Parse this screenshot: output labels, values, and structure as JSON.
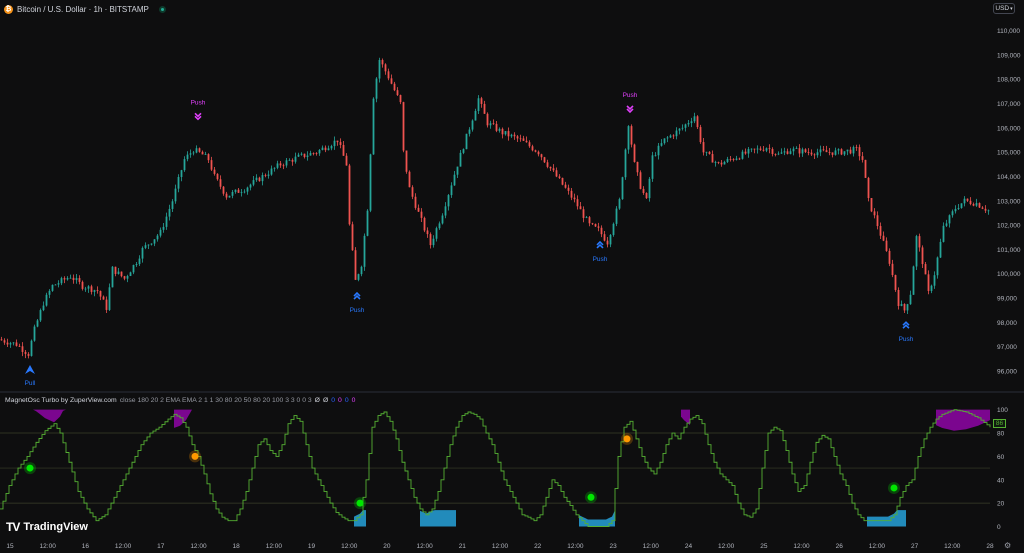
{
  "header": {
    "symbol_title": "Bitcoin / U.S. Dollar · 1h · BITSTAMP",
    "currency": "USD"
  },
  "indicator": {
    "name": "MagnetOsc Turbo by ZuperView.com",
    "params": "close 180 20 2 EMA EMA 2 1 1 30 80 20 50 80 20 100 3 3 0 0 3",
    "values": [
      "Ø",
      "Ø",
      "0",
      "0",
      "0",
      "0"
    ],
    "value_colors": [
      "#d1d4dc",
      "#d1d4dc",
      "#2962ff",
      "#e040fb",
      "#2962ff",
      "#e040fb"
    ],
    "current_value": "86"
  },
  "brand": {
    "name": "TradingView"
  },
  "colors": {
    "up": "#26a69a",
    "down": "#ef5350",
    "bull_signal": "#2979ff",
    "bear_signal": "#e040fb",
    "osc_line": "#55b033",
    "bull_zone": "#29b6f6",
    "bear_zone": "#d500f9",
    "green_dot": "#00e600",
    "orange_dot": "#ff9800"
  },
  "chart_data": [
    {
      "type": "candlestick",
      "title": "Bitcoin / U.S. Dollar · 1h · BITSTAMP",
      "y_ticks": [
        96000,
        97000,
        98000,
        99000,
        100000,
        101000,
        102000,
        103000,
        104000,
        105000,
        106000,
        107000,
        108000,
        109000,
        110000
      ],
      "ylim": [
        95300,
        110600
      ],
      "x_ticks": [
        "15",
        "12:00",
        "16",
        "12:00",
        "17",
        "12:00",
        "18",
        "12:00",
        "19",
        "12:00",
        "20",
        "12:00",
        "21",
        "12:00",
        "22",
        "12:00",
        "23",
        "12:00",
        "24",
        "12:00",
        "25",
        "12:00",
        "26",
        "12:00",
        "27",
        "12:00",
        "28"
      ],
      "xlim": [
        0,
        330
      ],
      "path_knots": [
        [
          0,
          97300
        ],
        [
          6,
          97100
        ],
        [
          10,
          96700
        ],
        [
          12,
          97700
        ],
        [
          15,
          98800
        ],
        [
          18,
          99500
        ],
        [
          24,
          99900
        ],
        [
          28,
          99500
        ],
        [
          33,
          99300
        ],
        [
          36,
          98600
        ],
        [
          38,
          100200
        ],
        [
          42,
          99800
        ],
        [
          46,
          100500
        ],
        [
          48,
          101000
        ],
        [
          54,
          101700
        ],
        [
          58,
          103000
        ],
        [
          62,
          104700
        ],
        [
          65,
          105100
        ],
        [
          68,
          104900
        ],
        [
          70,
          104700
        ],
        [
          72,
          104000
        ],
        [
          76,
          103200
        ],
        [
          82,
          103500
        ],
        [
          88,
          104000
        ],
        [
          94,
          104500
        ],
        [
          100,
          104800
        ],
        [
          106,
          105000
        ],
        [
          113,
          105500
        ],
        [
          116,
          104500
        ],
        [
          117,
          102000
        ],
        [
          119,
          99700
        ],
        [
          121,
          100400
        ],
        [
          123,
          102700
        ],
        [
          125,
          107300
        ],
        [
          127,
          108800
        ],
        [
          130,
          108100
        ],
        [
          134,
          107000
        ],
        [
          135,
          105000
        ],
        [
          137,
          103500
        ],
        [
          140,
          102500
        ],
        [
          144,
          101200
        ],
        [
          148,
          102500
        ],
        [
          153,
          104500
        ],
        [
          157,
          106000
        ],
        [
          160,
          107200
        ],
        [
          163,
          106200
        ],
        [
          168,
          105800
        ],
        [
          174,
          105500
        ],
        [
          180,
          105000
        ],
        [
          186,
          104000
        ],
        [
          192,
          103000
        ],
        [
          197,
          102000
        ],
        [
          200,
          101800
        ],
        [
          203,
          101300
        ],
        [
          207,
          103000
        ],
        [
          210,
          106200
        ],
        [
          212,
          104500
        ],
        [
          214,
          103600
        ],
        [
          216,
          103000
        ],
        [
          218,
          104800
        ],
        [
          222,
          105500
        ],
        [
          228,
          106000
        ],
        [
          232,
          106500
        ],
        [
          235,
          105000
        ],
        [
          240,
          104500
        ],
        [
          244,
          104700
        ],
        [
          250,
          105000
        ],
        [
          256,
          105200
        ],
        [
          260,
          104900
        ],
        [
          264,
          105100
        ],
        [
          270,
          105000
        ],
        [
          280,
          105000
        ],
        [
          286,
          105100
        ],
        [
          288,
          104700
        ],
        [
          290,
          103000
        ],
        [
          293,
          102000
        ],
        [
          297,
          100500
        ],
        [
          300,
          98800
        ],
        [
          302,
          98500
        ],
        [
          304,
          99200
        ],
        [
          306,
          101500
        ],
        [
          308,
          100500
        ],
        [
          310,
          99200
        ],
        [
          312,
          100000
        ],
        [
          315,
          101900
        ],
        [
          319,
          102700
        ],
        [
          322,
          103000
        ],
        [
          326,
          102900
        ],
        [
          330,
          102600
        ]
      ],
      "signals": [
        {
          "label": "Pull",
          "type": "bull",
          "x": 10,
          "y": 96700
        },
        {
          "label": "Push",
          "type": "bear",
          "x": 66,
          "y": 105900
        },
        {
          "label": "Push",
          "type": "bull",
          "x": 119,
          "y": 99700
        },
        {
          "label": "Push",
          "type": "bull",
          "x": 200,
          "y": 101800
        },
        {
          "label": "Push",
          "type": "bear",
          "x": 210,
          "y": 106200
        },
        {
          "label": "Push",
          "type": "bull",
          "x": 302,
          "y": 98500
        }
      ]
    },
    {
      "type": "line",
      "title": "MagnetOsc Turbo by ZuperView.com",
      "y_ticks": [
        0,
        20,
        40,
        60,
        80,
        100
      ],
      "ylim": [
        -3,
        104
      ],
      "levels": [
        20,
        50,
        80
      ],
      "osc_knots": [
        [
          0,
          15
        ],
        [
          3,
          35
        ],
        [
          6,
          50
        ],
        [
          9,
          60
        ],
        [
          12,
          72
        ],
        [
          15,
          82
        ],
        [
          18,
          88
        ],
        [
          20,
          80
        ],
        [
          23,
          55
        ],
        [
          26,
          30
        ],
        [
          29,
          15
        ],
        [
          32,
          5
        ],
        [
          35,
          10
        ],
        [
          38,
          25
        ],
        [
          41,
          40
        ],
        [
          44,
          55
        ],
        [
          47,
          70
        ],
        [
          50,
          80
        ],
        [
          53,
          85
        ],
        [
          56,
          92
        ],
        [
          58,
          96
        ],
        [
          60,
          93
        ],
        [
          62,
          85
        ],
        [
          64,
          70
        ],
        [
          66,
          60
        ],
        [
          68,
          45
        ],
        [
          70,
          28
        ],
        [
          72,
          15
        ],
        [
          74,
          8
        ],
        [
          76,
          5
        ],
        [
          78,
          5
        ],
        [
          80,
          15
        ],
        [
          82,
          30
        ],
        [
          84,
          50
        ],
        [
          86,
          70
        ],
        [
          88,
          75
        ],
        [
          90,
          65
        ],
        [
          92,
          60
        ],
        [
          94,
          70
        ],
        [
          96,
          88
        ],
        [
          98,
          95
        ],
        [
          100,
          90
        ],
        [
          102,
          70
        ],
        [
          104,
          50
        ],
        [
          106,
          40
        ],
        [
          108,
          30
        ],
        [
          110,
          20
        ],
        [
          112,
          12
        ],
        [
          114,
          8
        ],
        [
          116,
          5
        ],
        [
          118,
          5
        ],
        [
          120,
          10
        ],
        [
          122,
          40
        ],
        [
          124,
          85
        ],
        [
          126,
          95
        ],
        [
          128,
          98
        ],
        [
          130,
          90
        ],
        [
          132,
          75
        ],
        [
          134,
          55
        ],
        [
          136,
          40
        ],
        [
          138,
          25
        ],
        [
          140,
          15
        ],
        [
          142,
          10
        ],
        [
          144,
          15
        ],
        [
          146,
          30
        ],
        [
          148,
          50
        ],
        [
          150,
          70
        ],
        [
          152,
          85
        ],
        [
          154,
          95
        ],
        [
          156,
          98
        ],
        [
          158,
          96
        ],
        [
          160,
          92
        ],
        [
          162,
          80
        ],
        [
          164,
          70
        ],
        [
          166,
          55
        ],
        [
          168,
          40
        ],
        [
          170,
          30
        ],
        [
          172,
          20
        ],
        [
          174,
          10
        ],
        [
          176,
          8
        ],
        [
          178,
          5
        ],
        [
          180,
          10
        ],
        [
          182,
          25
        ],
        [
          184,
          40
        ],
        [
          186,
          35
        ],
        [
          188,
          25
        ],
        [
          190,
          18
        ],
        [
          192,
          10
        ],
        [
          194,
          5
        ],
        [
          196,
          0
        ],
        [
          198,
          0
        ],
        [
          200,
          0
        ],
        [
          202,
          0
        ],
        [
          204,
          5
        ],
        [
          206,
          60
        ],
        [
          208,
          85
        ],
        [
          210,
          90
        ],
        [
          212,
          75
        ],
        [
          214,
          60
        ],
        [
          216,
          50
        ],
        [
          218,
          45
        ],
        [
          220,
          55
        ],
        [
          222,
          70
        ],
        [
          224,
          80
        ],
        [
          226,
          75
        ],
        [
          228,
          85
        ],
        [
          230,
          92
        ],
        [
          232,
          95
        ],
        [
          234,
          88
        ],
        [
          236,
          70
        ],
        [
          238,
          55
        ],
        [
          240,
          45
        ],
        [
          242,
          40
        ],
        [
          244,
          35
        ],
        [
          246,
          20
        ],
        [
          248,
          10
        ],
        [
          250,
          8
        ],
        [
          252,
          15
        ],
        [
          254,
          50
        ],
        [
          256,
          80
        ],
        [
          258,
          85
        ],
        [
          260,
          82
        ],
        [
          262,
          65
        ],
        [
          264,
          45
        ],
        [
          266,
          30
        ],
        [
          268,
          35
        ],
        [
          270,
          55
        ],
        [
          272,
          72
        ],
        [
          274,
          78
        ],
        [
          276,
          75
        ],
        [
          278,
          60
        ],
        [
          280,
          45
        ],
        [
          282,
          35
        ],
        [
          284,
          20
        ],
        [
          286,
          10
        ],
        [
          288,
          5
        ],
        [
          290,
          5
        ],
        [
          292,
          5
        ],
        [
          294,
          5
        ],
        [
          296,
          5
        ],
        [
          298,
          10
        ],
        [
          300,
          25
        ],
        [
          302,
          35
        ],
        [
          304,
          40
        ],
        [
          306,
          60
        ],
        [
          308,
          75
        ],
        [
          310,
          85
        ],
        [
          312,
          92
        ],
        [
          314,
          96
        ],
        [
          316,
          98
        ],
        [
          318,
          100
        ],
        [
          322,
          98
        ],
        [
          326,
          93
        ],
        [
          330,
          85
        ]
      ],
      "bull_zones": [
        [
          118,
          122
        ],
        [
          140,
          152
        ],
        [
          193,
          205
        ],
        [
          289,
          302
        ]
      ],
      "bear_zones": [
        [
          0,
          25
        ],
        [
          58,
          73
        ],
        [
          227,
          230
        ],
        [
          312,
          330
        ]
      ],
      "dots": [
        {
          "x": 10,
          "y": 50,
          "color": "green"
        },
        {
          "x": 65,
          "y": 60,
          "color": "orange"
        },
        {
          "x": 120,
          "y": 20,
          "color": "green"
        },
        {
          "x": 197,
          "y": 25,
          "color": "green"
        },
        {
          "x": 209,
          "y": 75,
          "color": "orange"
        },
        {
          "x": 298,
          "y": 33,
          "color": "green"
        }
      ]
    }
  ]
}
